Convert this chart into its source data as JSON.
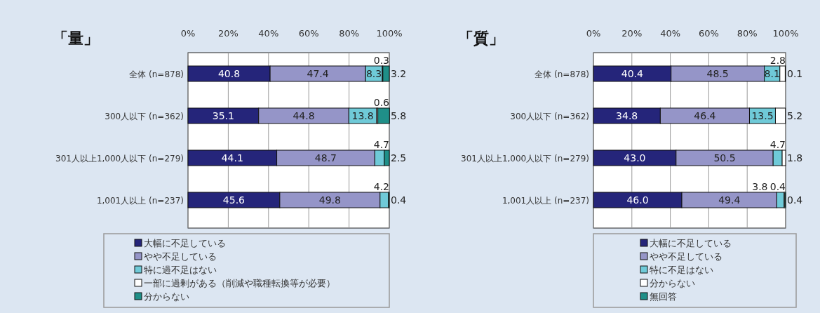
{
  "chart_data": [
    {
      "type": "bar",
      "orientation": "horizontal",
      "stacked": true,
      "title": "「量」",
      "categories": [
        "全体 (n=878)",
        "300人以下 (n=362)",
        "301人以上1,000人以下 (n=279)",
        "1,001人以上 (n=237)"
      ],
      "xlim": [
        0,
        100
      ],
      "xticks": [
        {
          "value": 0,
          "label": "0%"
        },
        {
          "value": 20,
          "label": "20%"
        },
        {
          "value": 40,
          "label": "40%"
        },
        {
          "value": 60,
          "label": "60%"
        },
        {
          "value": 80,
          "label": "80%"
        },
        {
          "value": 100,
          "label": "100%"
        }
      ],
      "grid": "x",
      "legend": "bottom",
      "series": [
        {
          "name": "大幅に不足している",
          "color": "#25257a",
          "values": [
            40.8,
            35.1,
            44.1,
            45.6
          ],
          "value_labels": [
            "40.8",
            "35.1",
            "44.1",
            "45.6"
          ]
        },
        {
          "name": "やや不足している",
          "color": "#9595c8",
          "values": [
            47.4,
            44.8,
            48.7,
            49.8
          ],
          "value_labels": [
            "47.4",
            "44.8",
            "48.7",
            "49.8"
          ]
        },
        {
          "name": "特に過不足はない",
          "color": "#6fcad8",
          "values": [
            8.3,
            13.8,
            4.7,
            4.2
          ],
          "value_labels": [
            "8.3",
            "13.8",
            "4.7",
            "4.2"
          ]
        },
        {
          "name": "一部に過剰がある（削減や職種転換等が必要）",
          "color": "#ffffff",
          "values": [
            0.3,
            0.6,
            null,
            null
          ],
          "value_labels": [
            "0.3",
            "0.6",
            null,
            null
          ]
        },
        {
          "name": "分からない",
          "color": "#1f8f88",
          "values": [
            3.2,
            5.8,
            2.5,
            0.4
          ],
          "value_labels": [
            "3.2",
            "5.8",
            "2.5",
            "0.4"
          ]
        }
      ]
    },
    {
      "type": "bar",
      "orientation": "horizontal",
      "stacked": true,
      "title": "「質」",
      "categories": [
        "全体 (n=878)",
        "300人以下 (n=362)",
        "301人以上1,000人以下 (n=279)",
        "1,001人以上 (n=237)"
      ],
      "xlim": [
        0,
        100
      ],
      "xticks": [
        {
          "value": 0,
          "label": "0%"
        },
        {
          "value": 20,
          "label": "20%"
        },
        {
          "value": 40,
          "label": "40%"
        },
        {
          "value": 60,
          "label": "60%"
        },
        {
          "value": 80,
          "label": "80%"
        },
        {
          "value": 100,
          "label": "100%"
        }
      ],
      "grid": "x",
      "legend": "bottom",
      "series": [
        {
          "name": "大幅に不足している",
          "color": "#25257a",
          "values": [
            40.4,
            34.8,
            43.0,
            46.0
          ],
          "value_labels": [
            "40.4",
            "34.8",
            "43.0",
            "46.0"
          ]
        },
        {
          "name": "やや不足している",
          "color": "#9595c8",
          "values": [
            48.5,
            46.4,
            50.5,
            49.4
          ],
          "value_labels": [
            "48.5",
            "46.4",
            "50.5",
            "49.4"
          ]
        },
        {
          "name": "特に不足はない",
          "color": "#6fcad8",
          "values": [
            8.1,
            13.5,
            4.7,
            3.8
          ],
          "value_labels": [
            "8.1",
            "13.5",
            "4.7",
            "3.8"
          ]
        },
        {
          "name": "分からない",
          "color": "#ffffff",
          "values": [
            2.8,
            5.2,
            1.8,
            0.4
          ],
          "value_labels": [
            "2.8",
            "5.2",
            "1.8",
            "0.4"
          ]
        },
        {
          "name": "無回答",
          "color": "#1f8f88",
          "values": [
            0.1,
            null,
            null,
            0.4
          ],
          "value_labels": [
            "0.1",
            null,
            null,
            "0.4"
          ]
        }
      ]
    }
  ]
}
